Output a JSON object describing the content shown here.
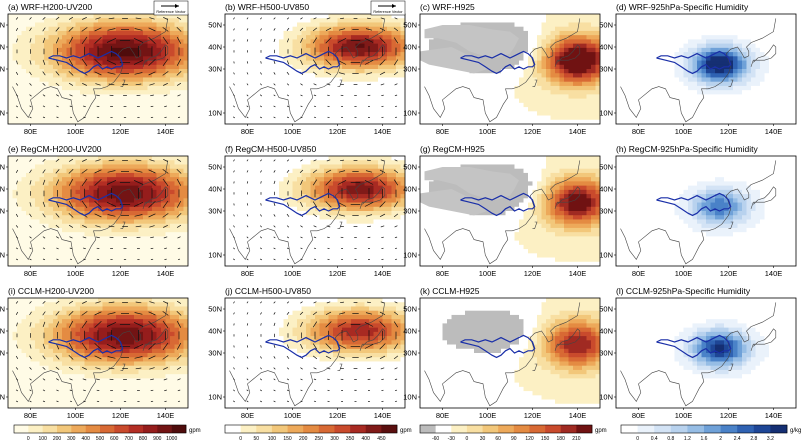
{
  "figure": {
    "panels": [
      {
        "label": "(a) WRF-H200-UV200",
        "field": "h200",
        "vectors": true,
        "refvec": true,
        "coastonly": false
      },
      {
        "label": "(b) WRF-H500-UV850",
        "field": "h500",
        "vectors": true,
        "refvec": true,
        "coastonly": false
      },
      {
        "label": "(c) WRF-H925",
        "field": "h925",
        "vectors": false,
        "refvec": false,
        "coastonly": false
      },
      {
        "label": "(d) WRF-925hPa-Specific Humidity",
        "field": "q925",
        "vectors": false,
        "refvec": false,
        "coastonly": true
      },
      {
        "label": "(e) RegCM-H200-UV200",
        "field": "h200",
        "vectors": true,
        "refvec": false,
        "coastonly": false
      },
      {
        "label": "(f) RegCM-H500-UV850",
        "field": "h500",
        "vectors": true,
        "refvec": false,
        "coastonly": false
      },
      {
        "label": "(g) RegCM-H925",
        "field": "h925",
        "vectors": false,
        "refvec": false,
        "coastonly": false
      },
      {
        "label": "(h) RegCM-925hPa-Specific Humidity",
        "field": "q925",
        "vectors": false,
        "refvec": false,
        "coastonly": true
      },
      {
        "label": "(i) CCLM-H200-UV200",
        "field": "h200",
        "vectors": true,
        "refvec": false,
        "coastonly": false
      },
      {
        "label": "(j) CCLM-H500-UV850",
        "field": "h500",
        "vectors": true,
        "refvec": false,
        "coastonly": false
      },
      {
        "label": "(k) CCLM-H925",
        "field": "h925",
        "vectors": false,
        "refvec": false,
        "coastonly": false
      },
      {
        "label": "(l) CCLM-925hPa-Specific Humidity",
        "field": "q925",
        "vectors": false,
        "refvec": false,
        "coastonly": true
      }
    ],
    "lon_ticks": [
      "80E",
      "100E",
      "120E",
      "140E"
    ],
    "lat_ticks": [
      "50N",
      "40N",
      "30N",
      "10N"
    ],
    "reference_vector_label": "Reference Vector",
    "colorbars": [
      {
        "field": "h200",
        "labels": [
          "0",
          "100",
          "200",
          "300",
          "400",
          "500",
          "600",
          "700",
          "800",
          "900",
          "1000"
        ],
        "unit": "gpm",
        "colors": [
          "#fffbe6",
          "#fcf0c4",
          "#f8dfa2",
          "#f2c77a",
          "#eda95a",
          "#e48b42",
          "#d86934",
          "#c94a2c",
          "#b32e24",
          "#951d1c",
          "#731414",
          "#4f0c0c"
        ]
      },
      {
        "field": "h500",
        "labels": [
          "0",
          "50",
          "100",
          "150",
          "200",
          "250",
          "300",
          "350",
          "400",
          "450"
        ],
        "unit": "gpm",
        "colors": [
          "#ffffff",
          "#fcf0c4",
          "#f8dfa2",
          "#f2c77a",
          "#eda95a",
          "#e48b42",
          "#d86934",
          "#c94a2c",
          "#a82a22",
          "#801a18",
          "#5a0f0f"
        ]
      },
      {
        "field": "h925",
        "labels": [
          "-60",
          "-30",
          "0",
          "30",
          "60",
          "90",
          "120",
          "150",
          "180",
          "210"
        ],
        "unit": "gpm",
        "colors": [
          "#bcbcbc",
          "#ffffff",
          "#fcf0c4",
          "#f8dfa2",
          "#f2c77a",
          "#eda95a",
          "#e48b42",
          "#d86934",
          "#c94a2c",
          "#a02a22",
          "#701212"
        ]
      },
      {
        "field": "q925",
        "labels": [
          "0",
          "0.4",
          "0.8",
          "1.2",
          "1.6",
          "2",
          "2.4",
          "2.8",
          "3.2"
        ],
        "unit": "g/kg",
        "colors": [
          "#ffffff",
          "#eaf2fb",
          "#d3e3f5",
          "#b8d2ee",
          "#96bde5",
          "#6fa1d8",
          "#4a82c8",
          "#2f62b2",
          "#1e4696",
          "#152f73"
        ]
      }
    ]
  },
  "chart_data": {
    "type": "heatmap",
    "title": "",
    "rows": [
      "WRF",
      "RegCM",
      "CCLM"
    ],
    "columns": [
      "H200-UV200",
      "H500-UV850",
      "H925",
      "925hPa-Specific Humidity"
    ],
    "domain": {
      "lon_range": [
        70,
        150
      ],
      "lat_range": [
        5,
        55
      ]
    },
    "approx_field_maxima": {
      "h200_gpm": {
        "WRF": 950,
        "RegCM": 900,
        "CCLM": 900
      },
      "h500_gpm": {
        "WRF": 420,
        "RegCM": 400,
        "CCLM": 360
      },
      "h925_gpm": {
        "WRF": 210,
        "RegCM": 180,
        "CCLM": 150
      },
      "q925_gkg": {
        "WRF": 3.2,
        "RegCM": 1.8,
        "CCLM": 2.6
      }
    },
    "approx_maximum_center": {
      "h200": {
        "lon": 122,
        "lat": 38
      },
      "h500": {
        "lon": 130,
        "lat": 40
      },
      "h925": {
        "lon": 140,
        "lat": 34
      },
      "q925": {
        "lon": 115,
        "lat": 32
      }
    },
    "colorbar_units": [
      "gpm",
      "gpm",
      "gpm",
      "g/kg"
    ]
  }
}
